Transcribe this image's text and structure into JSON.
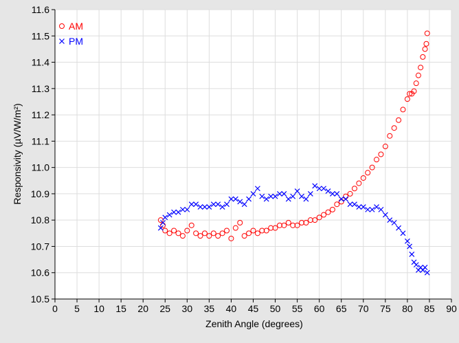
{
  "chart_data": {
    "type": "scatter",
    "xlabel": "Zenith Angle (degrees)",
    "ylabel": "Responsivity (µV/W/m²)",
    "xlim": [
      0,
      90
    ],
    "ylim": [
      10.5,
      11.6
    ],
    "xticks": [
      0,
      5,
      10,
      15,
      20,
      25,
      30,
      35,
      40,
      45,
      50,
      55,
      60,
      65,
      70,
      75,
      80,
      85,
      90
    ],
    "yticks": [
      10.5,
      10.6,
      10.7,
      10.8,
      10.9,
      {
        "value": 11,
        "label": "11.0"
      },
      11.1,
      11.2,
      11.3,
      11.4,
      11.5,
      11.6
    ],
    "grid": true,
    "legend": "upper left",
    "series": [
      {
        "name": "AM",
        "color": "#ff0000",
        "marker": "circle",
        "x": [
          24,
          24.5,
          25,
          26,
          27,
          28,
          29,
          30,
          31,
          32,
          33,
          34,
          35,
          36,
          37,
          38,
          39,
          40,
          41,
          42,
          43,
          44,
          45,
          46,
          47,
          48,
          49,
          50,
          51,
          52,
          53,
          54,
          55,
          56,
          57,
          58,
          59,
          60,
          61,
          62,
          63,
          64,
          65,
          66,
          67,
          68,
          69,
          70,
          71,
          72,
          73,
          74,
          75,
          76,
          77,
          78,
          79,
          80,
          80.5,
          81,
          81.5,
          82,
          82.5,
          83,
          83.5,
          84,
          84.3,
          84.5
        ],
        "y": [
          10.8,
          10.78,
          10.76,
          10.75,
          10.76,
          10.75,
          10.74,
          10.76,
          10.78,
          10.75,
          10.74,
          10.75,
          10.74,
          10.75,
          10.74,
          10.75,
          10.76,
          10.73,
          10.77,
          10.79,
          10.74,
          10.75,
          10.76,
          10.75,
          10.76,
          10.76,
          10.77,
          10.77,
          10.78,
          10.78,
          10.79,
          10.78,
          10.78,
          10.79,
          10.79,
          10.8,
          10.8,
          10.81,
          10.82,
          10.83,
          10.84,
          10.86,
          10.87,
          10.89,
          10.9,
          10.92,
          10.94,
          10.96,
          10.98,
          11.0,
          11.03,
          11.05,
          11.08,
          11.12,
          11.15,
          11.18,
          11.22,
          11.26,
          11.28,
          11.28,
          11.29,
          11.32,
          11.35,
          11.38,
          11.42,
          11.45,
          11.47,
          11.51
        ]
      },
      {
        "name": "PM",
        "color": "#0000ff",
        "marker": "x",
        "x": [
          24,
          24.5,
          25,
          26,
          27,
          28,
          29,
          30,
          31,
          32,
          33,
          34,
          35,
          36,
          37,
          38,
          39,
          40,
          41,
          42,
          43,
          44,
          45,
          46,
          47,
          48,
          49,
          50,
          51,
          52,
          53,
          54,
          55,
          56,
          57,
          58,
          59,
          60,
          61,
          62,
          63,
          64,
          65,
          66,
          67,
          68,
          69,
          70,
          71,
          72,
          73,
          74,
          75,
          76,
          77,
          78,
          79,
          80,
          80.5,
          81,
          81.5,
          82,
          82.5,
          83,
          83.5,
          84,
          84.5
        ],
        "y": [
          10.77,
          10.79,
          10.81,
          10.82,
          10.83,
          10.83,
          10.84,
          10.84,
          10.86,
          10.86,
          10.85,
          10.85,
          10.85,
          10.86,
          10.86,
          10.85,
          10.86,
          10.88,
          10.88,
          10.87,
          10.86,
          10.88,
          10.9,
          10.92,
          10.89,
          10.88,
          10.89,
          10.89,
          10.9,
          10.9,
          10.88,
          10.89,
          10.91,
          10.89,
          10.88,
          10.9,
          10.93,
          10.92,
          10.92,
          10.91,
          10.9,
          10.9,
          10.88,
          10.88,
          10.86,
          10.86,
          10.85,
          10.85,
          10.84,
          10.84,
          10.85,
          10.84,
          10.82,
          10.8,
          10.79,
          10.77,
          10.75,
          10.72,
          10.7,
          10.67,
          10.64,
          10.63,
          10.61,
          10.62,
          10.61,
          10.62,
          10.6
        ]
      }
    ]
  }
}
